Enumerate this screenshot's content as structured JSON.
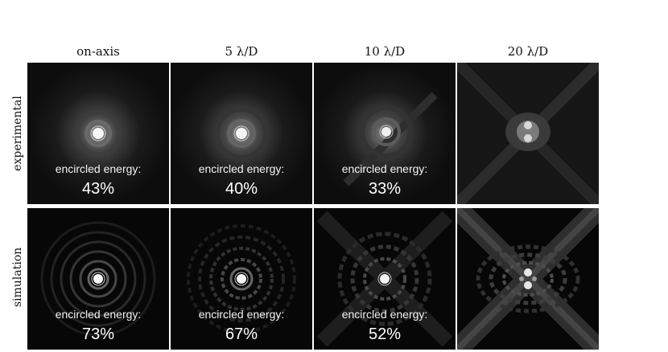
{
  "columns": [
    "on-axis",
    "5 λ/D",
    "10 λ/D",
    "20 λ/D"
  ],
  "rows": [
    "experimental",
    "simulation"
  ],
  "panels": {
    "experimental": [
      {
        "label": "encircled energy:",
        "value": "43%"
      },
      {
        "label": "encircled energy:",
        "value": "40%"
      },
      {
        "label": "encircled energy:",
        "value": "33%"
      },
      {
        "label": "",
        "value": ""
      }
    ],
    "simulation": [
      {
        "label": "encircled energy:",
        "value": "73%"
      },
      {
        "label": "encircled energy:",
        "value": "67%"
      },
      {
        "label": "encircled energy:",
        "value": "52%"
      },
      {
        "label": "",
        "value": ""
      }
    ]
  }
}
